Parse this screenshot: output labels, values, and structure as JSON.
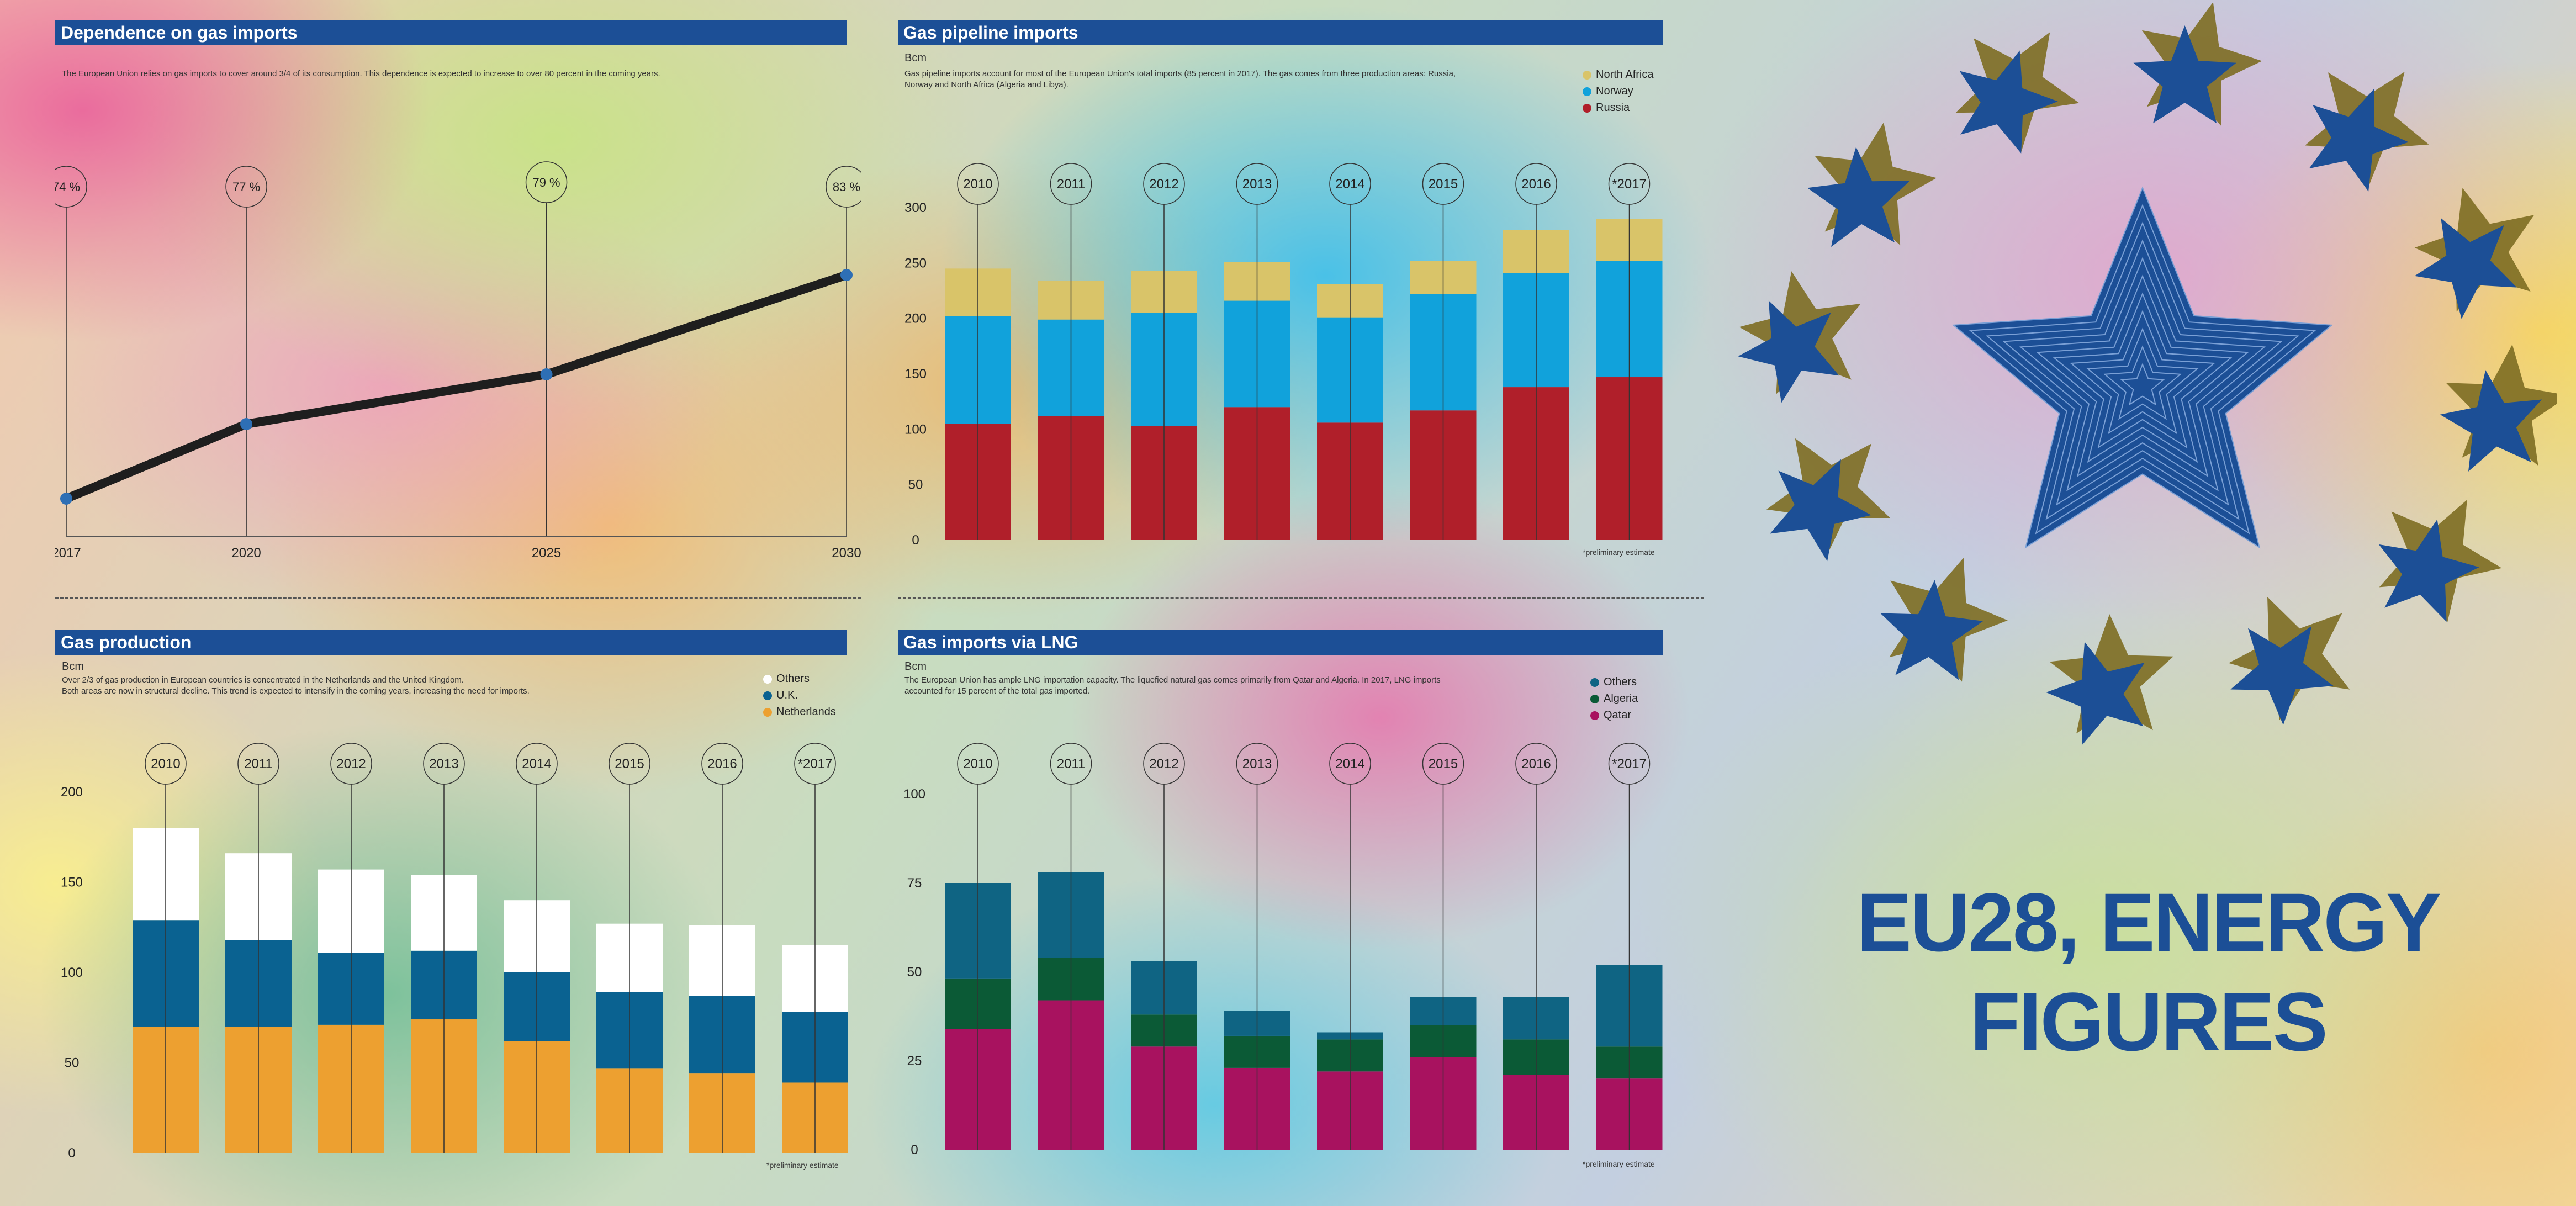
{
  "colors": {
    "title_bar": "#1c4f96",
    "line": "#1e1e1e",
    "point": "#2e6fb5",
    "north_africa": "#d9c469",
    "norway": "#11a2db",
    "russia": "#b01f2a",
    "others_prod": "#ffffff",
    "uk": "#0a6291",
    "netherlands": "#eda030",
    "lng_others": "#0f6483",
    "algeria": "#0b5a36",
    "qatar": "#a8125f",
    "star": "#1c4f96",
    "gold": "#7d6d22"
  },
  "dependence": {
    "title": "Dependence on gas imports",
    "description": "The European Union relies on gas imports to cover around 3/4 of its consumption. This dependence is expected to increase to over 80 percent in the coming years."
  },
  "pipeline": {
    "title": "Gas pipeline imports",
    "unit": "Bcm",
    "description": "Gas pipeline imports account for most of the European Union's total imports (85 percent in 2017). The gas comes from three production areas: Russia,\nNorway and North Africa (Algeria and Libya).",
    "legend": [
      "North Africa",
      "Norway",
      "Russia"
    ],
    "note": "*preliminary estimate"
  },
  "production": {
    "title": "Gas production",
    "unit": "Bcm",
    "description": "Over 2/3 of gas production in European countries is concentrated in the Netherlands and the United Kingdom.\nBoth areas are now in structural decline. This trend is expected to intensify in the coming years, increasing the need for imports.",
    "legend": [
      "Others",
      "U.K.",
      "Netherlands"
    ],
    "note": "*preliminary estimate"
  },
  "lng": {
    "title": "Gas imports via LNG",
    "unit": "Bcm",
    "description": "The European Union has ample LNG importation capacity. The liquefied natural gas comes primarily from Qatar and Algeria. In 2017, LNG imports\naccounted for 15 percent of the total gas imported.",
    "legend": [
      "Others",
      "Algeria",
      "Qatar"
    ],
    "note": "*preliminary estimate"
  },
  "hero": {
    "line1": "EU28, ENERGY",
    "line2": "FIGURES",
    "icon": "eu-stars-icon"
  },
  "chart_data": [
    {
      "type": "line",
      "title": "Dependence on gas imports",
      "x": [
        "2017",
        "2020",
        "2025",
        "2030"
      ],
      "x_numeric": [
        2017,
        2020,
        2025,
        2030
      ],
      "values": [
        74,
        77,
        79,
        83
      ],
      "point_labels": [
        "74 %",
        "77 %",
        "79 %",
        "83 %"
      ],
      "ylim": [
        72,
        84
      ]
    },
    {
      "type": "bar",
      "stacked": true,
      "title": "Gas pipeline imports",
      "ylabel": "Bcm",
      "categories": [
        "2010",
        "2011",
        "2012",
        "2013",
        "2014",
        "2015",
        "2016",
        "*2017"
      ],
      "series": [
        {
          "name": "Russia",
          "values": [
            105,
            112,
            103,
            120,
            106,
            117,
            138,
            147
          ]
        },
        {
          "name": "Norway",
          "values": [
            97,
            87,
            102,
            96,
            95,
            105,
            103,
            105
          ]
        },
        {
          "name": "North Africa",
          "values": [
            43,
            35,
            38,
            35,
            30,
            30,
            39,
            38
          ]
        }
      ],
      "yticks": [
        0,
        50,
        100,
        150,
        200,
        250,
        300
      ],
      "ylim": [
        0,
        300
      ]
    },
    {
      "type": "bar",
      "stacked": true,
      "title": "Gas production",
      "ylabel": "Bcm",
      "categories": [
        "2010",
        "2011",
        "2012",
        "2013",
        "2014",
        "2015",
        "2016",
        "*2017"
      ],
      "series": [
        {
          "name": "Netherlands",
          "values": [
            70,
            70,
            71,
            74,
            62,
            47,
            44,
            39
          ]
        },
        {
          "name": "U.K.",
          "values": [
            59,
            48,
            40,
            38,
            38,
            42,
            43,
            39
          ]
        },
        {
          "name": "Others",
          "values": [
            51,
            48,
            46,
            42,
            40,
            38,
            39,
            37
          ]
        }
      ],
      "yticks": [
        0,
        50,
        100,
        150,
        200
      ],
      "ylim": [
        0,
        200
      ]
    },
    {
      "type": "bar",
      "stacked": true,
      "title": "Gas imports via LNG",
      "ylabel": "Bcm",
      "categories": [
        "2010",
        "2011",
        "2012",
        "2013",
        "2014",
        "2015",
        "2016",
        "*2017"
      ],
      "series": [
        {
          "name": "Qatar",
          "values": [
            34,
            42,
            29,
            23,
            22,
            26,
            21,
            20
          ]
        },
        {
          "name": "Algeria",
          "values": [
            14,
            12,
            9,
            9,
            9,
            9,
            10,
            9
          ]
        },
        {
          "name": "Others",
          "values": [
            27,
            24,
            15,
            7,
            2,
            8,
            12,
            23
          ]
        }
      ],
      "yticks": [
        0,
        25,
        50,
        75,
        100
      ],
      "ylim": [
        0,
        100
      ]
    }
  ]
}
